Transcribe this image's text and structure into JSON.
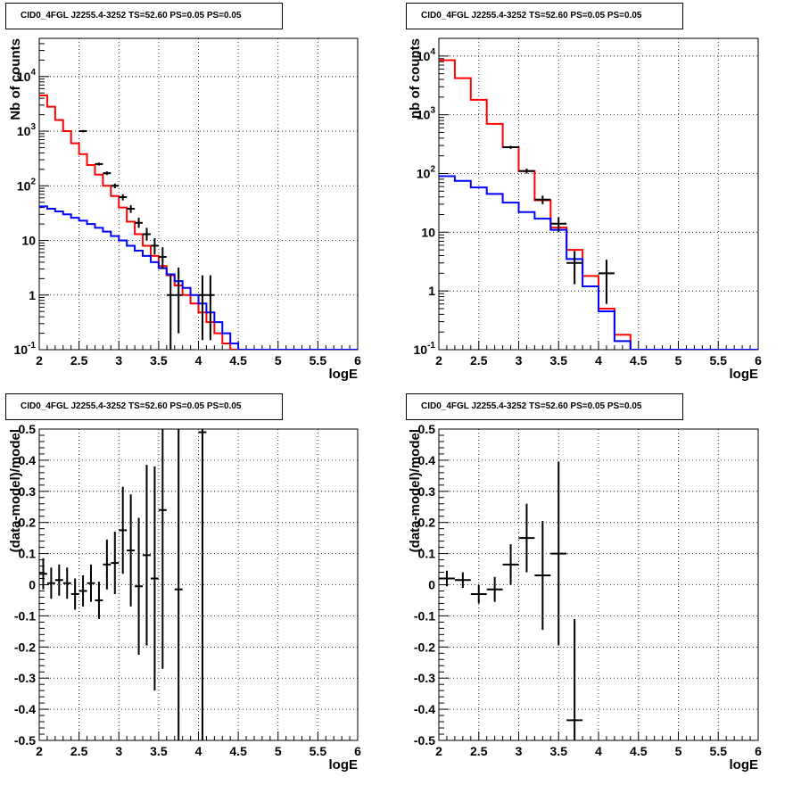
{
  "chart_data": [
    {
      "type": "line",
      "title": "CID0_4FGL J2255.4-3252 TS=52.60 PS=0.05 PS=0.05",
      "xlabel": "logE",
      "ylabel": "Nb of counts",
      "xlim": [
        2,
        6
      ],
      "ylim": [
        0.1,
        50000
      ],
      "yscale": "log",
      "grid": true,
      "x_ticks": [
        "2",
        "2.5",
        "3",
        "3.5",
        "4",
        "4.5",
        "5",
        "5.5",
        "6"
      ],
      "y_ticks": [
        "10^-1",
        "1",
        "10",
        "10^2",
        "10^3",
        "10^4"
      ],
      "series": [
        {
          "color": "#ff0000",
          "style": "histogram",
          "bin_width": 0.1,
          "bin_edges_start": 2.0,
          "values": [
            4500,
            2800,
            1600,
            1000,
            600,
            380,
            240,
            160,
            100,
            65,
            40,
            22,
            13,
            8,
            5.2,
            3.4,
            2.3,
            1.5,
            1.0,
            0.7,
            0.48,
            0.32,
            0.2,
            0.13,
            0.1,
            0.1,
            0.1,
            0.1,
            0.1,
            0.1,
            0.1,
            0.1,
            0.1,
            0.1,
            0.1,
            0.1,
            0.1,
            0.1,
            0.1,
            0.1
          ]
        },
        {
          "color": "#0000ff",
          "style": "histogram",
          "bin_width": 0.1,
          "bin_edges_start": 2.0,
          "values": [
            42,
            38,
            34,
            30,
            26,
            23,
            20,
            17,
            14.5,
            12,
            10,
            8,
            6.5,
            5.2,
            4,
            3.1,
            2.4,
            1.8,
            1.35,
            1.0,
            0.7,
            0.48,
            0.32,
            0.2,
            0.13,
            0.1,
            0.1,
            0.1,
            0.1,
            0.1,
            0.1,
            0.1,
            0.1,
            0.1,
            0.1,
            0.1,
            0.1,
            0.1,
            0.1,
            0.1
          ]
        }
      ],
      "points": [
        {
          "x": 2.55,
          "y": 1000,
          "yerr_lo": 950,
          "yerr_hi": 1050
        },
        {
          "x": 2.75,
          "y": 250,
          "yerr_lo": 235,
          "yerr_hi": 266
        },
        {
          "x": 2.85,
          "y": 170,
          "yerr_lo": 157,
          "yerr_hi": 183
        },
        {
          "x": 2.95,
          "y": 100,
          "yerr_lo": 90,
          "yerr_hi": 110
        },
        {
          "x": 3.05,
          "y": 62,
          "yerr_lo": 54,
          "yerr_hi": 70
        },
        {
          "x": 3.15,
          "y": 38,
          "yerr_lo": 32,
          "yerr_hi": 44
        },
        {
          "x": 3.25,
          "y": 21,
          "yerr_lo": 17,
          "yerr_hi": 26
        },
        {
          "x": 3.35,
          "y": 13,
          "yerr_lo": 10,
          "yerr_hi": 17
        },
        {
          "x": 3.45,
          "y": 8,
          "yerr_lo": 5.5,
          "yerr_hi": 11
        },
        {
          "x": 3.55,
          "y": 5,
          "yerr_lo": 3,
          "yerr_hi": 7.5
        },
        {
          "x": 3.65,
          "y": 1,
          "yerr_lo": 0.1,
          "yerr_hi": 2.3
        },
        {
          "x": 3.75,
          "y": 1,
          "yerr_lo": 0.2,
          "yerr_hi": 3.2
        },
        {
          "x": 4.05,
          "y": 1,
          "yerr_lo": 0.15,
          "yerr_hi": 2.3
        },
        {
          "x": 4.15,
          "y": 1,
          "yerr_lo": 0.15,
          "yerr_hi": 2.3
        }
      ]
    },
    {
      "type": "line",
      "title": "CID0_4FGL J2255.4-3252 TS=52.60 PS=0.05 PS=0.05",
      "xlabel": "logE",
      "ylabel": "nb of counts",
      "xlim": [
        2,
        6
      ],
      "ylim": [
        0.1,
        20000
      ],
      "yscale": "log",
      "grid": true,
      "x_ticks": [
        "2",
        "2.5",
        "3",
        "3.5",
        "4",
        "4.5",
        "5",
        "5.5",
        "6"
      ],
      "y_ticks": [
        "10^-1",
        "1",
        "10",
        "10^2",
        "10^3",
        "10^4"
      ],
      "series": [
        {
          "color": "#ff0000",
          "style": "histogram",
          "bin_width": 0.2,
          "bin_edges_start": 2.0,
          "values": [
            8500,
            4200,
            1800,
            700,
            280,
            110,
            35,
            12,
            5,
            1.8,
            0.5,
            0.18,
            0.1,
            0.1,
            0.1,
            0.1,
            0.1,
            0.1,
            0.1,
            0.1
          ]
        },
        {
          "color": "#0000ff",
          "style": "histogram",
          "bin_width": 0.2,
          "bin_edges_start": 2.0,
          "values": [
            90,
            75,
            58,
            45,
            32,
            22,
            17,
            11,
            3.5,
            1.2,
            0.45,
            0.14,
            0.1,
            0.1,
            0.1,
            0.1,
            0.1,
            0.1,
            0.1,
            0.1
          ]
        }
      ],
      "points": [
        {
          "x": 2.9,
          "y": 280,
          "yerr_lo": 263,
          "yerr_hi": 297
        },
        {
          "x": 3.1,
          "y": 110,
          "yerr_lo": 100,
          "yerr_hi": 121
        },
        {
          "x": 3.3,
          "y": 36,
          "yerr_lo": 30,
          "yerr_hi": 42
        },
        {
          "x": 3.5,
          "y": 14,
          "yerr_lo": 10,
          "yerr_hi": 18
        },
        {
          "x": 3.7,
          "y": 3,
          "yerr_lo": 1.3,
          "yerr_hi": 4.8
        },
        {
          "x": 4.1,
          "y": 2,
          "yerr_lo": 0.6,
          "yerr_hi": 3.4
        }
      ]
    },
    {
      "type": "scatter",
      "title": "CID0_4FGL J2255.4-3252 TS=52.60 PS=0.05 PS=0.05",
      "xlabel": "logE",
      "ylabel": "(data-model)/model",
      "xlim": [
        2,
        6
      ],
      "ylim": [
        -0.5,
        0.5
      ],
      "grid": true,
      "x_ticks": [
        "2",
        "2.5",
        "3",
        "3.5",
        "4",
        "4.5",
        "5",
        "5.5",
        "6"
      ],
      "y_ticks": [
        "-0.5",
        "-0.4",
        "-0.3",
        "-0.2",
        "-0.1",
        "0",
        "0.1",
        "0.2",
        "0.3",
        "0.4",
        "0.5"
      ],
      "points": [
        {
          "x": 2.05,
          "y": 0.035,
          "yerr": 0.05
        },
        {
          "x": 2.15,
          "y": 0.005,
          "yerr": 0.05
        },
        {
          "x": 2.25,
          "y": 0.015,
          "yerr": 0.05
        },
        {
          "x": 2.35,
          "y": 0.005,
          "yerr": 0.05
        },
        {
          "x": 2.45,
          "y": -0.03,
          "yerr": 0.05
        },
        {
          "x": 2.55,
          "y": -0.02,
          "yerr": 0.05
        },
        {
          "x": 2.65,
          "y": 0.005,
          "yerr": 0.06
        },
        {
          "x": 2.75,
          "y": -0.05,
          "yerr": 0.06
        },
        {
          "x": 2.85,
          "y": 0.065,
          "yerr": 0.08
        },
        {
          "x": 2.95,
          "y": 0.07,
          "yerr": 0.1
        },
        {
          "x": 3.05,
          "y": 0.175,
          "yerr": 0.14
        },
        {
          "x": 3.15,
          "y": 0.11,
          "yerr": 0.18
        },
        {
          "x": 3.25,
          "y": -0.005,
          "yerr": 0.22
        },
        {
          "x": 3.35,
          "y": 0.095,
          "yerr": 0.29
        },
        {
          "x": 3.45,
          "y": 0.02,
          "yerr": 0.36
        },
        {
          "x": 3.55,
          "y": 0.24,
          "yerr": 0.51
        },
        {
          "x": 3.75,
          "y": -0.015,
          "yerr": 0.9
        },
        {
          "x": 4.05,
          "y": 0.49,
          "yerr": 1.0
        }
      ]
    },
    {
      "type": "scatter",
      "title": "CID0_4FGL J2255.4-3252 TS=52.60 PS=0.05 PS=0.05",
      "xlabel": "logE",
      "ylabel": "(data-model)/model",
      "xlim": [
        2,
        6
      ],
      "ylim": [
        -0.5,
        0.5
      ],
      "grid": true,
      "x_ticks": [
        "2",
        "2.5",
        "3",
        "3.5",
        "4",
        "4.5",
        "5",
        "5.5",
        "6"
      ],
      "y_ticks": [
        "-0.5",
        "-0.4",
        "-0.3",
        "-0.2",
        "-0.1",
        "0",
        "0.1",
        "0.2",
        "0.3",
        "0.4",
        "0.5"
      ],
      "points": [
        {
          "x": 2.1,
          "y": 0.02,
          "yerr": 0.025
        },
        {
          "x": 2.3,
          "y": 0.015,
          "yerr": 0.025
        },
        {
          "x": 2.5,
          "y": -0.03,
          "yerr": 0.03
        },
        {
          "x": 2.7,
          "y": -0.015,
          "yerr": 0.04
        },
        {
          "x": 2.9,
          "y": 0.065,
          "yerr": 0.065
        },
        {
          "x": 3.1,
          "y": 0.15,
          "yerr": 0.11
        },
        {
          "x": 3.3,
          "y": 0.03,
          "yerr": 0.175
        },
        {
          "x": 3.5,
          "y": 0.1,
          "yerr": 0.295
        },
        {
          "x": 3.7,
          "y": -0.435,
          "yerr": 0.325
        }
      ]
    }
  ]
}
